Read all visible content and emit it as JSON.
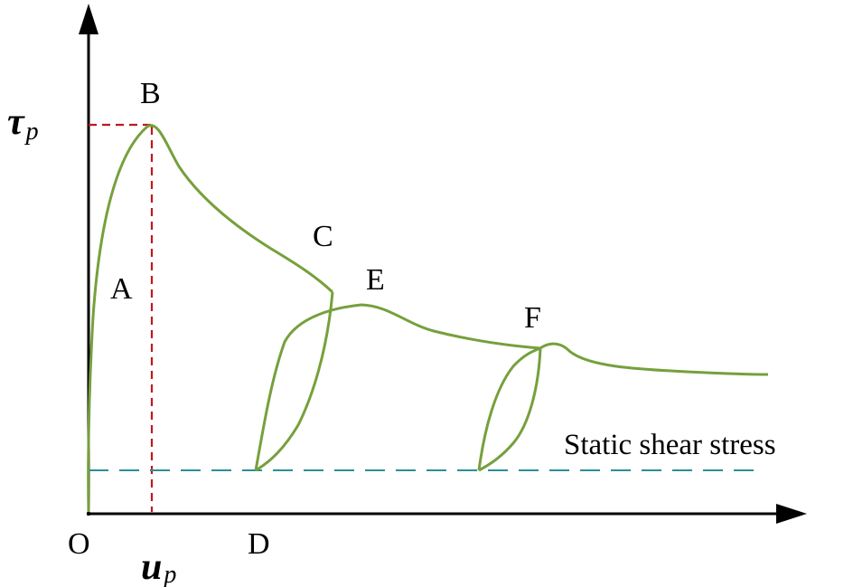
{
  "colors": {
    "curve": "#76a03c",
    "peak_guides": "#c0181f",
    "static_line": "#2a8f9a",
    "axes": "#000000"
  },
  "axes": {
    "y_symbol": "τ",
    "y_subscript": "p",
    "x_symbol": "u",
    "x_subscript": "p",
    "origin": "O"
  },
  "points": {
    "A": "A",
    "B": "B",
    "C": "C",
    "D": "D",
    "E": "E",
    "F": "F"
  },
  "static_line_label": "Static shear stress"
}
